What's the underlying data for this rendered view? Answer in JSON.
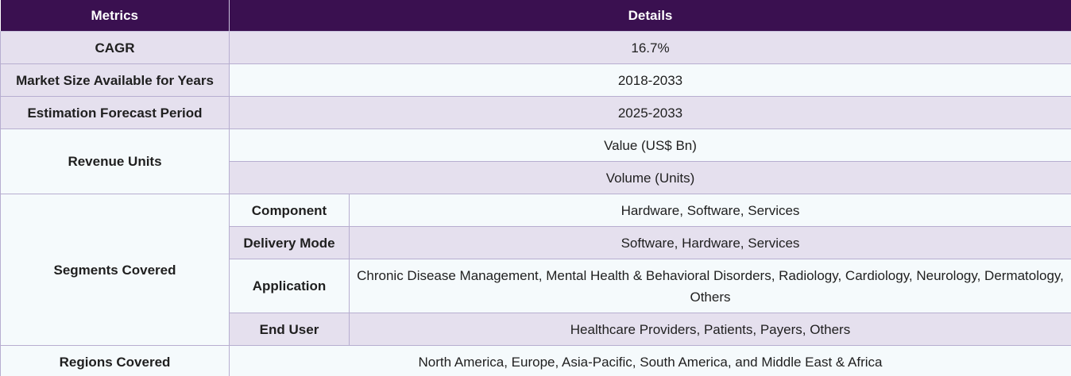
{
  "header": {
    "metrics": "Metrics",
    "details": "Details"
  },
  "rows": {
    "cagr": {
      "label": "CAGR",
      "value": "16.7%"
    },
    "market_size": {
      "label": "Market Size Available for Years",
      "value": "2018-2033"
    },
    "forecast": {
      "label": "Estimation Forecast Period",
      "value": "2025-2033"
    },
    "revenue": {
      "label": "Revenue Units",
      "values": [
        "Value (US$ Bn)",
        "Volume (Units)"
      ]
    },
    "segments": {
      "label": "Segments Covered",
      "items": [
        {
          "name": "Component",
          "value": "Hardware, Software, Services"
        },
        {
          "name": "Delivery Mode",
          "value": "Software, Hardware, Services"
        },
        {
          "name": "Application",
          "value": "Chronic Disease Management, Mental Health & Behavioral Disorders, Radiology, Cardiology, Neurology, Dermatology, Others"
        },
        {
          "name": "End User",
          "value": "Healthcare Providers, Patients, Payers, Others"
        }
      ]
    },
    "regions": {
      "label": "Regions Covered",
      "value": "North America, Europe, Asia-Pacific, South America, and Middle East & Africa"
    }
  }
}
